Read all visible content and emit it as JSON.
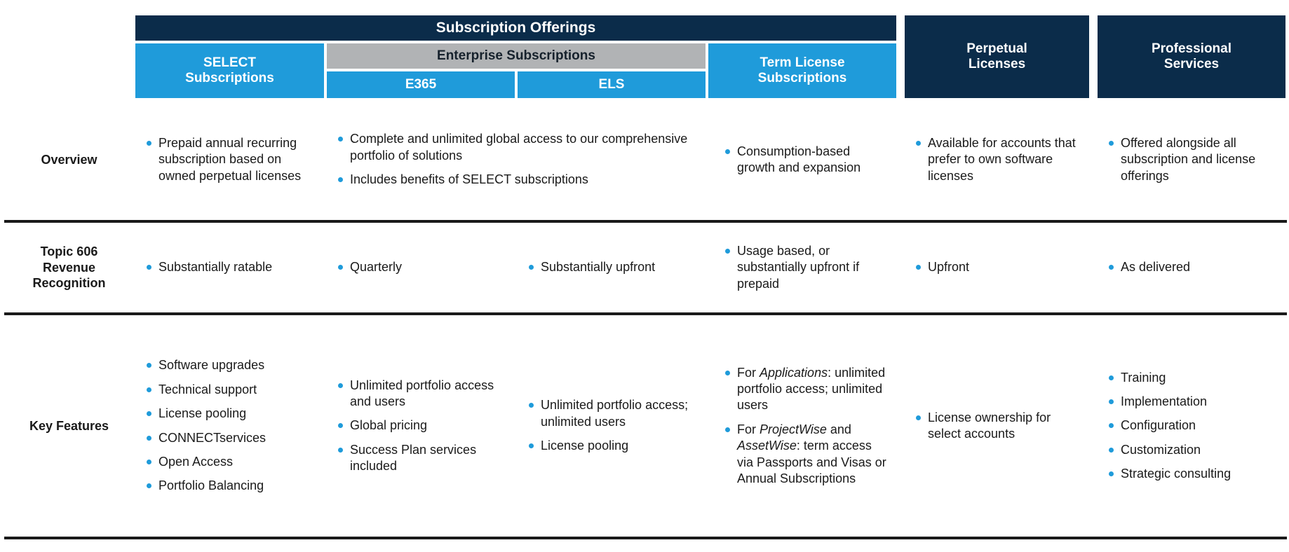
{
  "colors": {
    "navy": "#0b2c4a",
    "blue": "#1f9bda",
    "gray": "#b1b3b5",
    "divider": "#1a1a1a"
  },
  "headers": {
    "group": "Subscription Offerings",
    "select": "SELECT Subscriptions",
    "enterprise": "Enterprise Subscriptions",
    "e365": "E365",
    "els": "ELS",
    "term": "Term License Subscriptions",
    "perpetual": "Perpetual Licenses",
    "professional": "Professional Services"
  },
  "rows": {
    "overview": {
      "label": "Overview",
      "select": [
        "Prepaid annual recurring subscription based on owned perpetual licenses"
      ],
      "enterprise": [
        "Complete and unlimited global access to our comprehensive portfolio of solutions",
        "Includes benefits of SELECT subscriptions"
      ],
      "term": [
        "Consumption-based growth and expansion"
      ],
      "perpetual": [
        "Available for accounts that prefer to own software licenses"
      ],
      "professional": [
        "Offered alongside all subscription and license offerings"
      ]
    },
    "revenue": {
      "label": "Topic 606 Revenue Recognition",
      "select": [
        "Substantially ratable"
      ],
      "e365": [
        "Quarterly"
      ],
      "els": [
        "Substantially upfront"
      ],
      "term": [
        "Usage based, or substantially upfront if prepaid"
      ],
      "perpetual": [
        "Upfront"
      ],
      "professional": [
        "As delivered"
      ]
    },
    "features": {
      "label": "Key Features",
      "select": [
        "Software upgrades",
        "Technical support",
        "License pooling",
        "CONNECTservices",
        "Open Access",
        "Portfolio Balancing"
      ],
      "e365": [
        "Unlimited portfolio access and users",
        "Global pricing",
        "Success Plan services included"
      ],
      "els": [
        "Unlimited portfolio access; unlimited users",
        "License pooling"
      ],
      "term": [
        {
          "segments": [
            {
              "t": "For "
            },
            {
              "t": "Applications",
              "i": true
            },
            {
              "t": ": unlimited portfolio access; unlimited users"
            }
          ]
        },
        {
          "segments": [
            {
              "t": "For "
            },
            {
              "t": "ProjectWise",
              "i": true
            },
            {
              "t": " and "
            },
            {
              "t": "AssetWise",
              "i": true
            },
            {
              "t": ": term access via Passports and Visas or Annual Subscriptions"
            }
          ]
        }
      ],
      "perpetual": [
        "License ownership for select accounts"
      ],
      "professional": [
        "Training",
        "Implementation",
        "Configuration",
        "Customization",
        "Strategic consulting"
      ]
    }
  }
}
